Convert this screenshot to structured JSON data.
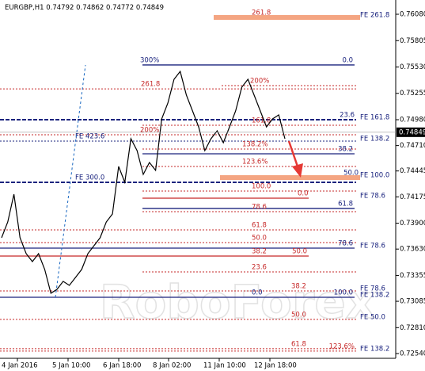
{
  "chart_data": {
    "type": "line",
    "symbol": "EURGBP,H1",
    "ohlc": [
      0.74792,
      0.74862,
      0.74772,
      0.74849
    ],
    "watermark": "RoboForex",
    "ylim": [
      0.7249,
      0.76229
    ],
    "yticks": [
      {
        "value": 0.7608,
        "label": "0.76080"
      },
      {
        "value": 0.75805,
        "label": "0.75805"
      },
      {
        "value": 0.7553,
        "label": "0.75530"
      },
      {
        "value": 0.75255,
        "label": "0.75255"
      },
      {
        "value": 0.7498,
        "label": "0.74980"
      },
      {
        "value": 0.7471,
        "label": "0.74710"
      },
      {
        "value": 0.74445,
        "label": "0.74445"
      },
      {
        "value": 0.74175,
        "label": "0.74175"
      },
      {
        "value": 0.739,
        "label": "0.73900"
      },
      {
        "value": 0.7363,
        "label": "0.73630"
      },
      {
        "value": 0.73355,
        "label": "0.73355"
      },
      {
        "value": 0.73085,
        "label": "0.73085"
      },
      {
        "value": 0.7281,
        "label": "0.72810"
      },
      {
        "value": 0.7254,
        "label": "0.72540"
      }
    ],
    "xlabels": [
      "4 Jan 2016",
      "5 Jan 10:00",
      "6 Jan 18:00",
      "8 Jan 02:00",
      "11 Jan 10:00",
      "12 Jan 18:00"
    ],
    "series": [
      {
        "color": "#000000",
        "values": [
          0.73748,
          0.73913,
          0.74202,
          0.73748,
          0.73582,
          0.73499,
          0.73582,
          0.73417,
          0.73169,
          0.7321,
          0.73293,
          0.73251,
          0.73334,
          0.73417,
          0.73582,
          0.73665,
          0.73748,
          0.73913,
          0.73996,
          0.74492,
          0.74326,
          0.74781,
          0.74657,
          0.74409,
          0.74533,
          0.74451,
          0.74988,
          0.75154,
          0.75402,
          0.75484,
          0.75236,
          0.75071,
          0.74905,
          0.74657,
          0.74781,
          0.74864,
          0.7474,
          0.74905,
          0.75071,
          0.75319,
          0.75402,
          0.75236,
          0.75071,
          0.74905,
          0.74988,
          0.7503,
          0.74781
        ]
      }
    ],
    "levels": [
      {
        "price": 0.76047,
        "label": "261.8",
        "fe": "FE 261.8",
        "color": "#f4a582",
        "style": "zone"
      },
      {
        "price": 0.75551,
        "label": "300%",
        "end_label": "0.0",
        "color": "#1a237e",
        "style": "solid"
      },
      {
        "price": 0.75302,
        "label": "261.8",
        "color": "#c62828",
        "style": "dotted"
      },
      {
        "price": 0.75336,
        "label": "200%",
        "color": "#c62828",
        "style": "dotted"
      },
      {
        "price": 0.7498,
        "end_label": "23.6",
        "fe": "FE 161.8",
        "color": "#1a237e",
        "style": "dashed"
      },
      {
        "price": 0.74922,
        "label": "161.8",
        "color": "#c62828",
        "style": "dotted"
      },
      {
        "price": 0.74823,
        "label": "200%",
        "color": "#c62828",
        "style": "dotted"
      },
      {
        "price": 0.74757,
        "label": "FE 423.6",
        "fe": "FE 138.2",
        "color": "#1a237e",
        "style": "dotted"
      },
      {
        "price": 0.74674,
        "label": "138.2%",
        "color": "#c62828",
        "style": "dotted"
      },
      {
        "price": 0.74624,
        "end_label": "38.2",
        "color": "#1a237e",
        "style": "solid"
      },
      {
        "price": 0.74492,
        "label": "123.6%",
        "color": "#c62828",
        "style": "dotted"
      },
      {
        "price": 0.74376,
        "end_label": "50.0",
        "fe": "FE 100.0",
        "color": "#f4a582",
        "style": "zone"
      },
      {
        "price": 0.74326,
        "label": "FE 300.0",
        "color": "#1a237e",
        "style": "dashed"
      },
      {
        "price": 0.74235,
        "label": "100.0",
        "color": "#c62828",
        "style": "dotted"
      },
      {
        "price": 0.74161,
        "label": "0.0",
        "fe": "FE 78.6",
        "color": "#c62828",
        "style": "solid"
      },
      {
        "price": 0.74054,
        "end_label": "61.8",
        "color": "#1a237e",
        "style": "solid"
      },
      {
        "price": 0.7402,
        "label": "78.6",
        "color": "#c62828",
        "style": "dotted"
      },
      {
        "price": 0.7383,
        "label": "61.8",
        "color": "#c62828",
        "style": "dotted"
      },
      {
        "price": 0.73698,
        "label": "50.0",
        "color": "#c62828",
        "style": "dotted"
      },
      {
        "price": 0.7364,
        "end_label": "78.6",
        "fe": "FE 78.6",
        "color": "#1a237e",
        "style": "solid"
      },
      {
        "price": 0.73557,
        "label": "38.2",
        "end_label": "50.0",
        "color": "#c62828",
        "style": "solid"
      },
      {
        "price": 0.73392,
        "label": "23.6",
        "color": "#c62828",
        "style": "dotted"
      },
      {
        "price": 0.73193,
        "label": "38.2",
        "fe": "FE 78.6",
        "color": "#c62828",
        "style": "dotted"
      },
      {
        "price": 0.73127,
        "label": "0.0",
        "end_label": "100.0",
        "fe": "FE 138.2",
        "color": "#1a237e",
        "style": "solid"
      },
      {
        "price": 0.72896,
        "label": "50.0",
        "fe": "FE 50.0",
        "color": "#c62828",
        "style": "dotted"
      },
      {
        "price": 0.7259,
        "label": "61.8",
        "color": "#c62828",
        "style": "dotted"
      },
      {
        "price": 0.72565,
        "end_label": "123.6%",
        "fe": "FE 138.2",
        "color": "#c62828",
        "style": "dotted"
      }
    ]
  }
}
